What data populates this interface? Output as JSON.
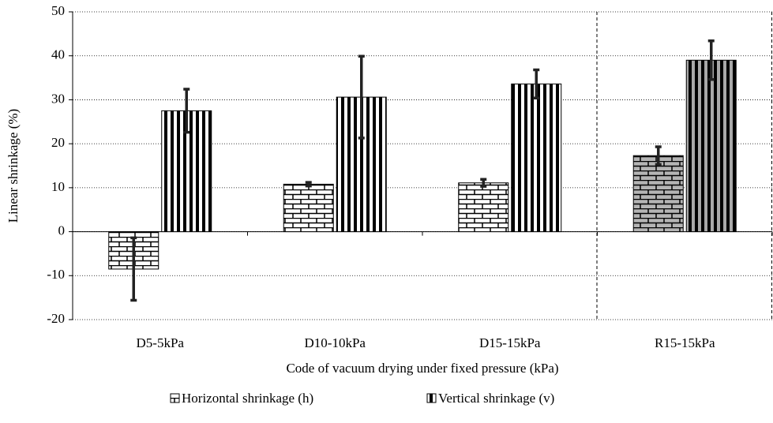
{
  "chart_data": {
    "type": "bar",
    "x_label": "Code of vacuum drying under fixed pressure (kPa)",
    "y_label": "Linear shrinkage (%)",
    "categories": [
      "D5-5kPa",
      "D10-10kPa",
      "D15-15kPa",
      "R15-15kPa"
    ],
    "series": [
      {
        "name": "Horizontal shrinkage (h)",
        "pattern": "brick",
        "colors": [
          "#ffffff",
          "#ffffff",
          "#ffffff",
          "#b4b4b4"
        ],
        "values": [
          -8.5,
          10.8,
          11.1,
          17.3
        ],
        "errors": [
          7.1,
          0.4,
          0.8,
          2.0
        ]
      },
      {
        "name": "Vertical shrinkage (v)",
        "pattern": "stripes",
        "colors": [
          "#ffffff",
          "#ffffff",
          "#ffffff",
          "#a8a8a8"
        ],
        "values": [
          27.5,
          30.6,
          33.6,
          39.0
        ],
        "errors": [
          4.9,
          9.3,
          3.2,
          4.4
        ]
      }
    ],
    "ylim": [
      -20,
      50
    ],
    "yticks": [
      -20,
      -10,
      0,
      10,
      20,
      30,
      40,
      50
    ],
    "grid": true,
    "legend": "bottom"
  }
}
